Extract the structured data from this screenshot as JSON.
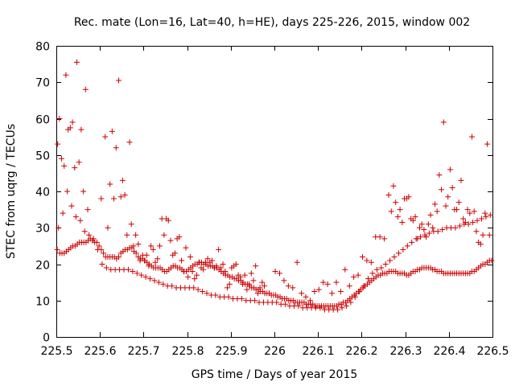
{
  "chart_data": {
    "type": "scatter",
    "title": "Rec. mate (Lon=16, Lat=40, h=HE), days 225-226, 2015, window 002",
    "xlabel": "GPS time / Days of year 2015",
    "ylabel": "STEC from uqrg / TECUs",
    "xlim": [
      225.5,
      226.5
    ],
    "ylim": [
      0,
      80
    ],
    "xticks": [
      225.5,
      225.6,
      225.7,
      225.8,
      225.9,
      226,
      226.1,
      226.2,
      226.3,
      226.4,
      226.5
    ],
    "xtick_labels": [
      "225.5",
      "225.6",
      "225.7",
      "225.8",
      "225.9",
      "226",
      "226.1",
      "226.2",
      "226.3",
      "226.4",
      "226.5"
    ],
    "yticks": [
      0,
      10,
      20,
      30,
      40,
      50,
      60,
      70,
      80
    ],
    "ytick_labels": [
      "0",
      "10",
      "20",
      "30",
      "40",
      "50",
      "60",
      "70",
      "80"
    ],
    "grid": false,
    "marker": "+",
    "color": "#cc0000",
    "series": [
      {
        "name": "",
        "x": [
          225.502,
          225.508,
          225.513,
          225.518,
          225.523,
          225.528,
          225.533,
          225.538,
          225.543,
          225.548,
          225.553,
          225.558,
          225.563,
          225.568,
          225.573,
          225.578,
          225.583,
          225.588,
          225.593,
          225.598,
          225.603,
          225.608,
          225.613,
          225.618,
          225.623,
          225.628,
          225.633,
          225.638,
          225.643,
          225.648,
          225.653,
          225.658,
          225.663,
          225.668,
          225.673,
          225.678,
          225.683,
          225.688,
          225.693,
          225.698,
          225.703,
          225.708,
          225.713,
          225.718,
          225.723,
          225.728,
          225.733,
          225.738,
          225.743,
          225.748,
          225.753,
          225.758,
          225.763,
          225.768,
          225.773,
          225.778,
          225.783,
          225.788,
          225.793,
          225.798,
          225.803,
          225.808,
          225.813,
          225.818,
          225.823,
          225.828,
          225.833,
          225.838,
          225.843,
          225.848,
          225.853,
          225.858,
          225.863,
          225.868,
          225.873,
          225.878,
          225.883,
          225.888,
          225.893,
          225.898,
          225.903,
          225.908,
          225.913,
          225.918,
          225.923,
          225.928,
          225.933,
          225.938,
          225.943,
          225.948,
          225.953,
          225.958,
          225.963,
          225.968,
          225.973,
          225.978,
          225.983,
          225.988,
          225.993,
          225.998,
          226.003,
          226.008,
          226.013,
          226.018,
          226.023,
          226.028,
          226.033,
          226.038,
          226.043,
          226.048,
          226.053,
          226.058,
          226.063,
          226.068,
          226.073,
          226.078,
          226.083,
          226.088,
          226.093,
          226.098,
          226.103,
          226.108,
          226.113,
          226.118,
          226.123,
          226.128,
          226.133,
          226.138,
          226.143,
          226.148,
          226.153,
          226.158,
          226.163,
          226.168,
          226.173,
          226.178,
          226.183,
          226.188,
          226.193,
          226.198,
          226.203,
          226.208,
          226.213,
          226.218,
          226.223,
          226.228,
          226.233,
          226.238,
          226.243,
          226.248,
          226.253,
          226.258,
          226.263,
          226.268,
          226.273,
          226.278,
          226.283,
          226.288,
          226.293,
          226.298,
          226.303,
          226.308,
          226.313,
          226.318,
          226.323,
          226.328,
          226.333,
          226.338,
          226.343,
          226.348,
          226.353,
          226.358,
          226.363,
          226.368,
          226.373,
          226.378,
          226.383,
          226.388,
          226.393,
          226.398,
          226.403,
          226.408,
          226.413,
          226.418,
          226.423,
          226.428,
          226.433,
          226.438,
          226.443,
          226.448,
          226.453,
          226.458,
          226.463,
          226.468,
          226.473,
          226.478,
          226.483,
          226.488,
          226.493,
          226.498
        ],
        "y": [
          24.0,
          23.0,
          23.0,
          23.0,
          23.5,
          24.0,
          24.5,
          25.0,
          25.0,
          25.5,
          26.0,
          26.0,
          26.0,
          26.0,
          26.5,
          27.0,
          26.5,
          26.0,
          26.0,
          25.0,
          24.0,
          23.0,
          22.0,
          22.0,
          22.0,
          22.0,
          22.0,
          21.5,
          22.0,
          23.0,
          23.5,
          24.0,
          24.0,
          24.5,
          24.5,
          23.5,
          23.0,
          22.0,
          21.5,
          21.5,
          21.0,
          20.5,
          20.0,
          19.5,
          19.0,
          19.0,
          19.0,
          19.0,
          18.5,
          18.0,
          18.0,
          18.5,
          19.0,
          19.5,
          19.5,
          19.0,
          19.0,
          18.5,
          18.0,
          18.0,
          18.5,
          19.0,
          19.5,
          20.0,
          20.0,
          20.5,
          20.5,
          20.0,
          20.0,
          19.5,
          19.5,
          19.5,
          19.0,
          19.0,
          18.5,
          18.0,
          17.5,
          17.0,
          17.0,
          16.5,
          16.5,
          16.0,
          16.0,
          15.5,
          15.5,
          15.0,
          14.5,
          14.5,
          14.0,
          13.5,
          13.5,
          13.0,
          13.0,
          12.5,
          12.5,
          12.0,
          12.0,
          12.0,
          11.5,
          11.5,
          11.5,
          11.0,
          11.0,
          10.5,
          10.5,
          10.5,
          10.0,
          10.0,
          10.0,
          9.5,
          9.5,
          9.5,
          9.5,
          9.5,
          9.0,
          9.0,
          9.0,
          9.0,
          8.5,
          8.5,
          8.5,
          8.5,
          8.5,
          8.5,
          8.5,
          8.5,
          8.5,
          8.5,
          8.5,
          9.0,
          9.0,
          9.5,
          9.5,
          10.0,
          10.5,
          11.0,
          11.5,
          12.0,
          12.5,
          13.0,
          13.5,
          14.0,
          14.5,
          15.0,
          15.5,
          16.0,
          16.5,
          17.0,
          17.0,
          17.5,
          17.5,
          17.5,
          18.0,
          18.0,
          18.0,
          18.0,
          17.5,
          17.5,
          17.5,
          17.5,
          17.0,
          17.0,
          17.5,
          18.0,
          18.0,
          18.5,
          18.5,
          19.0,
          19.0,
          19.0,
          19.0,
          19.0,
          18.5,
          18.5,
          18.0,
          18.0,
          18.0,
          17.5,
          17.5,
          17.5,
          17.5,
          17.5,
          17.5,
          17.5,
          17.5,
          17.5,
          17.5,
          17.5,
          17.5,
          17.5,
          18.0,
          18.0,
          18.5,
          19.0,
          19.5,
          20.0,
          20.0,
          20.5,
          21.0,
          21.0
        ]
      },
      {
        "name": "",
        "x": [
          225.505,
          225.515,
          225.525,
          225.535,
          225.545,
          225.555,
          225.565,
          225.575,
          225.585,
          225.595,
          225.605,
          225.615,
          225.625,
          225.635,
          225.645,
          225.655,
          225.665,
          225.675,
          225.685,
          225.695,
          225.705,
          225.715,
          225.725,
          225.735,
          225.745,
          225.755,
          225.765,
          225.775,
          225.785,
          225.795,
          225.805,
          225.815,
          225.825,
          225.835,
          225.845,
          225.855,
          225.865,
          225.875,
          225.885,
          225.895,
          225.905,
          225.915,
          225.925,
          225.935,
          225.945,
          225.955,
          225.965,
          225.975,
          225.985,
          225.995,
          226.005,
          226.015,
          226.025,
          226.035,
          226.045,
          226.055,
          226.065,
          226.075,
          226.085,
          226.095,
          226.105,
          226.115,
          226.125,
          226.135,
          226.145,
          226.155,
          226.165,
          226.175,
          226.185,
          226.195,
          226.205,
          226.215,
          226.225,
          226.235,
          226.245,
          226.255,
          226.265,
          226.275,
          226.285,
          226.295,
          226.305,
          226.315,
          226.325,
          226.335,
          226.345,
          226.355,
          226.365,
          226.375,
          226.385,
          226.395,
          226.405,
          226.415,
          226.425,
          226.435,
          226.445,
          226.455,
          226.465,
          226.475,
          226.485,
          226.495
        ],
        "y": [
          30.0,
          34.0,
          40.0,
          36.0,
          33.0,
          32.0,
          29.0,
          28.0,
          27.0,
          24.0,
          20.0,
          19.0,
          18.5,
          18.5,
          18.5,
          18.5,
          18.5,
          18.0,
          17.5,
          17.0,
          16.5,
          16.0,
          15.5,
          15.0,
          14.5,
          14.0,
          14.0,
          13.5,
          13.5,
          13.5,
          13.5,
          13.5,
          13.0,
          12.5,
          12.0,
          11.5,
          11.5,
          11.0,
          11.0,
          11.0,
          10.5,
          10.5,
          10.5,
          10.0,
          10.0,
          10.0,
          9.5,
          9.5,
          9.5,
          9.5,
          9.5,
          9.0,
          9.0,
          8.5,
          8.5,
          8.5,
          8.0,
          8.0,
          8.0,
          8.0,
          8.0,
          7.5,
          7.5,
          7.5,
          7.5,
          8.0,
          8.5,
          9.5,
          11.0,
          12.5,
          14.0,
          16.0,
          17.5,
          18.5,
          19.0,
          20.0,
          21.0,
          22.0,
          23.0,
          24.0,
          25.0,
          26.0,
          27.0,
          27.5,
          28.0,
          28.5,
          29.0,
          29.0,
          29.5,
          30.0,
          30.0,
          30.0,
          30.5,
          31.0,
          31.0,
          31.5,
          32.0,
          32.5,
          33.0,
          33.5
        ]
      },
      {
        "name": "",
        "x": [
          225.503,
          225.507,
          225.512,
          225.518,
          225.522,
          225.527,
          225.532,
          225.537,
          225.542,
          225.547,
          225.552,
          225.557,
          225.562,
          225.567,
          225.572,
          225.603,
          225.612,
          225.618,
          225.623,
          225.628,
          225.632,
          225.637,
          225.643,
          225.648,
          225.652,
          225.657,
          225.662,
          225.668,
          225.672,
          225.677,
          225.682,
          225.688,
          225.692,
          225.698,
          225.702,
          225.707,
          225.712,
          225.717,
          225.722,
          225.727,
          225.732,
          225.737,
          225.742,
          225.747,
          225.752,
          225.757,
          225.762,
          225.767,
          225.772,
          225.777,
          225.782,
          225.787,
          225.792,
          225.797,
          225.802,
          225.807,
          225.812,
          225.817,
          225.822,
          225.827,
          225.832,
          225.837,
          225.842,
          225.847,
          225.852,
          225.857,
          225.862,
          225.867,
          225.872,
          225.877,
          225.882,
          225.887,
          225.892,
          225.897,
          225.902,
          225.907,
          225.912,
          225.917,
          225.922,
          225.927,
          225.932,
          225.937,
          225.942,
          225.947,
          225.952,
          225.957,
          225.962,
          225.967,
          225.972,
          225.977,
          226.002,
          226.012,
          226.022,
          226.032,
          226.042,
          226.052,
          226.062,
          226.072,
          226.082,
          226.092,
          226.102,
          226.112,
          226.122,
          226.132,
          226.142,
          226.152,
          226.162,
          226.172,
          226.182,
          226.192,
          226.202,
          226.212,
          226.222,
          226.232,
          226.242,
          226.252,
          226.262,
          226.268,
          226.273,
          226.278,
          226.283,
          226.288,
          226.293,
          226.298,
          226.303,
          226.308,
          226.313,
          226.318,
          226.323,
          226.328,
          226.333,
          226.338,
          226.343,
          226.348,
          226.353,
          226.358,
          226.363,
          226.368,
          226.373,
          226.378,
          226.383,
          226.388,
          226.393,
          226.398,
          226.403,
          226.408,
          226.413,
          226.418,
          226.423,
          226.428,
          226.433,
          226.438,
          226.443,
          226.448,
          226.453,
          226.458,
          226.463,
          226.468,
          226.473,
          226.478,
          226.483,
          226.488,
          226.493,
          226.498
        ],
        "y": [
          53.0,
          60.0,
          49.0,
          47.0,
          72.0,
          57.0,
          57.5,
          59.0,
          46.5,
          75.5,
          48.0,
          57.0,
          40.0,
          68.0,
          35.0,
          38.0,
          55.0,
          30.0,
          42.0,
          56.5,
          38.0,
          52.0,
          70.5,
          38.5,
          43.0,
          39.0,
          28.0,
          53.5,
          31.0,
          25.0,
          28.0,
          25.5,
          21.0,
          22.5,
          21.0,
          22.5,
          19.5,
          25.0,
          24.0,
          20.5,
          21.5,
          25.0,
          32.5,
          28.0,
          32.5,
          32.0,
          26.5,
          22.5,
          23.0,
          27.0,
          27.5,
          21.0,
          18.0,
          24.5,
          16.5,
          22.0,
          18.0,
          16.0,
          17.0,
          20.5,
          19.0,
          18.5,
          20.5,
          21.5,
          20.5,
          21.0,
          19.0,
          19.5,
          24.0,
          19.0,
          20.0,
          18.0,
          13.5,
          14.5,
          19.0,
          19.5,
          20.0,
          17.0,
          16.5,
          14.5,
          17.0,
          13.0,
          14.5,
          17.5,
          15.5,
          19.5,
          12.0,
          13.5,
          15.0,
          14.0,
          18.0,
          17.5,
          15.5,
          14.0,
          13.5,
          20.5,
          12.0,
          11.0,
          10.0,
          12.5,
          13.0,
          15.0,
          14.5,
          12.0,
          15.0,
          12.5,
          18.5,
          14.0,
          16.5,
          17.0,
          22.0,
          21.0,
          20.5,
          27.5,
          27.5,
          27.0,
          39.0,
          34.5,
          41.5,
          37.0,
          33.0,
          35.0,
          31.5,
          38.0,
          38.0,
          38.5,
          32.5,
          32.0,
          33.0,
          27.0,
          30.0,
          31.0,
          29.5,
          27.5,
          31.0,
          33.5,
          30.0,
          36.5,
          34.5,
          44.5,
          40.5,
          59.0,
          36.0,
          38.5,
          46.0,
          41.0,
          35.0,
          35.0,
          37.0,
          43.0,
          32.5,
          31.5,
          35.0,
          34.0,
          55.0,
          34.5,
          29.0,
          26.0,
          25.5,
          28.0,
          34.0,
          53.0,
          28.0,
          21.0
        ]
      }
    ]
  }
}
